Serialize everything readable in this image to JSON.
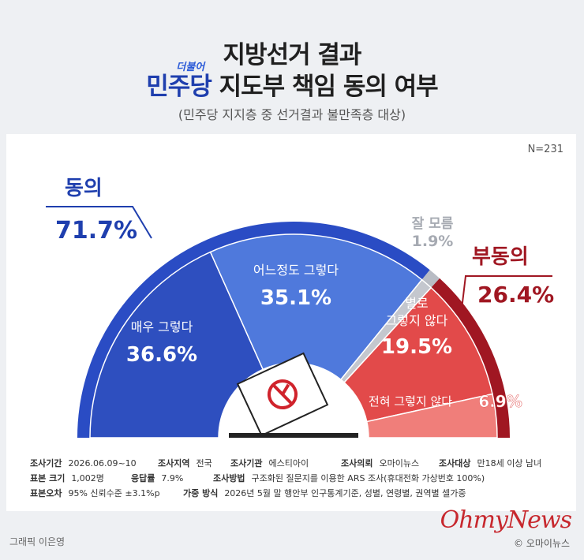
{
  "title": {
    "line1": "지방선거 결과",
    "party": "민주당",
    "party_note": "더불어",
    "line2_rest": " 지도부 책임 동의 여부"
  },
  "subtitle": "(민주당 지지층 중 선거결과 불만족층 대상)",
  "sample": "N=231",
  "chart_data": {
    "type": "pie",
    "shape": "semicircle",
    "groups": [
      {
        "label": "동의",
        "value": 71.7,
        "value_text": "71.7%",
        "color": "#2a4cc4"
      },
      {
        "label": "잘 모름",
        "value": 1.9,
        "value_text": "1.9%",
        "color": "#b8bcc4"
      },
      {
        "label": "부동의",
        "value": 26.4,
        "value_text": "26.4%",
        "color": "#a01722"
      }
    ],
    "segments": [
      {
        "label": "매우 그렇다",
        "value": 36.6,
        "value_text": "36.6%",
        "color": "#2e4fbf"
      },
      {
        "label": "어느정도 그렇다",
        "value": 35.1,
        "value_text": "35.1%",
        "color": "#4f79dc"
      },
      {
        "label": "잘 모름",
        "value": 1.9,
        "value_text": "",
        "color": "#c4c7ce"
      },
      {
        "label": "별로 그렇지 않다",
        "value": 19.5,
        "value_text": "19.5%",
        "color": "#e24a4a"
      },
      {
        "label": "전혀 그렇지 않다",
        "value": 6.9,
        "value_text": "6.9%",
        "color": "#f07e7a"
      }
    ]
  },
  "survey_info": {
    "period_label": "조사기간",
    "period": "2026.06.09~10",
    "region_label": "조사지역",
    "region": "전국",
    "agency_label": "조사기관",
    "agency": "에스티아이",
    "client_label": "조사의뢰",
    "client": "오마이뉴스",
    "target_label": "조사대상",
    "target": "만18세 이상 남녀",
    "size_label": "표본 크기",
    "size": "1,002명",
    "response_label": "응답률",
    "response": "7.9%",
    "method_label": "조사방법",
    "method": "구조화된 질문지를 이용한 ARS 조사(휴대전화 가상번호 100%)",
    "error_label": "표본오차",
    "error": "95% 신뢰수준 ±3.1%p",
    "weight_label": "가중 방식",
    "weight": "2026년 5월 말 행안부 인구통계기준, 성별, 연령별, 권역별 셀가중"
  },
  "credit": "그래픽 이은영",
  "logo": "OhmyNews",
  "copyright": "© 오마이뉴스"
}
